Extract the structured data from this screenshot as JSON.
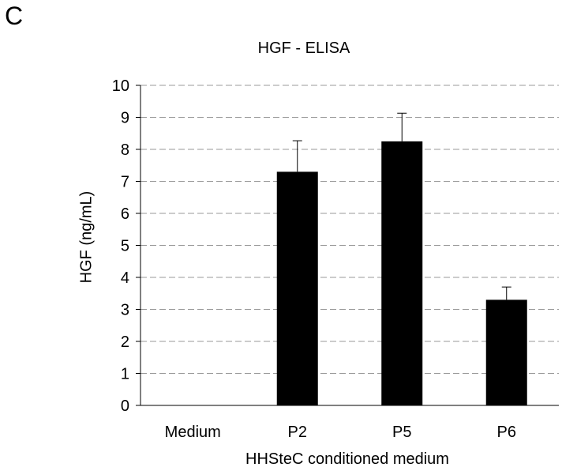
{
  "panel_letter": "C",
  "chart_data": {
    "type": "bar",
    "title": "HGF - ELISA",
    "xlabel": "HHSteC conditioned medium",
    "ylabel": "HGF (ng/mL)",
    "categories": [
      "Medium",
      "P2",
      "P5",
      "P6"
    ],
    "values": [
      0,
      7.3,
      8.25,
      3.3
    ],
    "errors": [
      0,
      0.97,
      0.88,
      0.4
    ],
    "ylim": [
      0,
      10
    ],
    "yticks": [
      0,
      1,
      2,
      3,
      4,
      5,
      6,
      7,
      8,
      9,
      10
    ],
    "grid": true,
    "bar_color": "#000000",
    "grid_color": "#999999"
  }
}
